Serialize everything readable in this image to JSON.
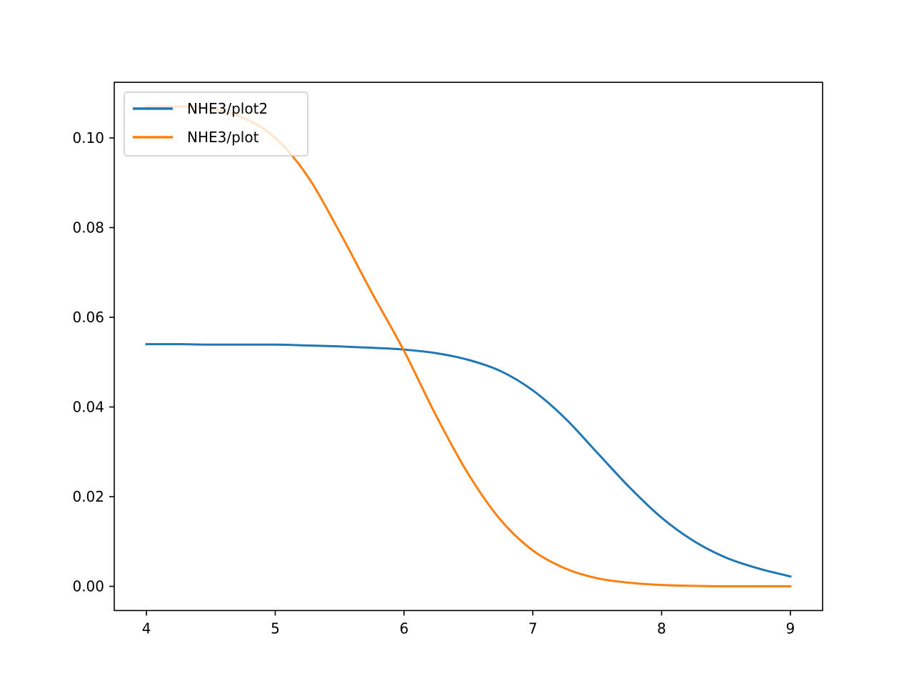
{
  "chart_data": {
    "type": "line",
    "title": "",
    "xlabel": "",
    "ylabel": "",
    "xlim": [
      3.75,
      9.25
    ],
    "ylim": [
      -0.0054,
      0.1124
    ],
    "x_ticks": [
      {
        "value": 4,
        "label": "4"
      },
      {
        "value": 5,
        "label": "5"
      },
      {
        "value": 6,
        "label": "6"
      },
      {
        "value": 7,
        "label": "7"
      },
      {
        "value": 8,
        "label": "8"
      },
      {
        "value": 9,
        "label": "9"
      }
    ],
    "y_ticks": [
      {
        "value": 0.0,
        "label": "0.00"
      },
      {
        "value": 0.02,
        "label": "0.02"
      },
      {
        "value": 0.04,
        "label": "0.04"
      },
      {
        "value": 0.06,
        "label": "0.06"
      },
      {
        "value": 0.08,
        "label": "0.08"
      },
      {
        "value": 0.1,
        "label": "0.10"
      }
    ],
    "grid": false,
    "legend_position": "upper-left",
    "series": [
      {
        "name": "NHE3/plot2",
        "color": "#1f77b4",
        "x": [
          4.0,
          4.25,
          4.5,
          4.75,
          5.0,
          5.25,
          5.5,
          5.75,
          6.0,
          6.25,
          6.5,
          6.75,
          7.0,
          7.25,
          7.5,
          7.75,
          8.0,
          8.25,
          8.5,
          8.75,
          9.0
        ],
        "y": [
          0.054,
          0.054,
          0.0539,
          0.0539,
          0.0539,
          0.0537,
          0.0535,
          0.0532,
          0.0528,
          0.052,
          0.0505,
          0.048,
          0.0437,
          0.0375,
          0.0298,
          0.0221,
          0.0153,
          0.0101,
          0.0064,
          0.004,
          0.0022
        ]
      },
      {
        "name": "NHE3/plot",
        "color": "#ff7f0e",
        "x": [
          4.0,
          4.25,
          4.5,
          4.75,
          5.0,
          5.25,
          5.5,
          5.75,
          6.0,
          6.25,
          6.5,
          6.75,
          7.0,
          7.25,
          7.5,
          7.75,
          8.0,
          8.25,
          8.5,
          8.75,
          9.0
        ],
        "y": [
          0.107,
          0.107,
          0.1065,
          0.1045,
          0.1,
          0.0915,
          0.079,
          0.0655,
          0.0525,
          0.038,
          0.025,
          0.0148,
          0.008,
          0.004,
          0.0018,
          0.0008,
          0.0003,
          0.0001,
          0.0,
          0.0,
          0.0
        ]
      }
    ]
  }
}
